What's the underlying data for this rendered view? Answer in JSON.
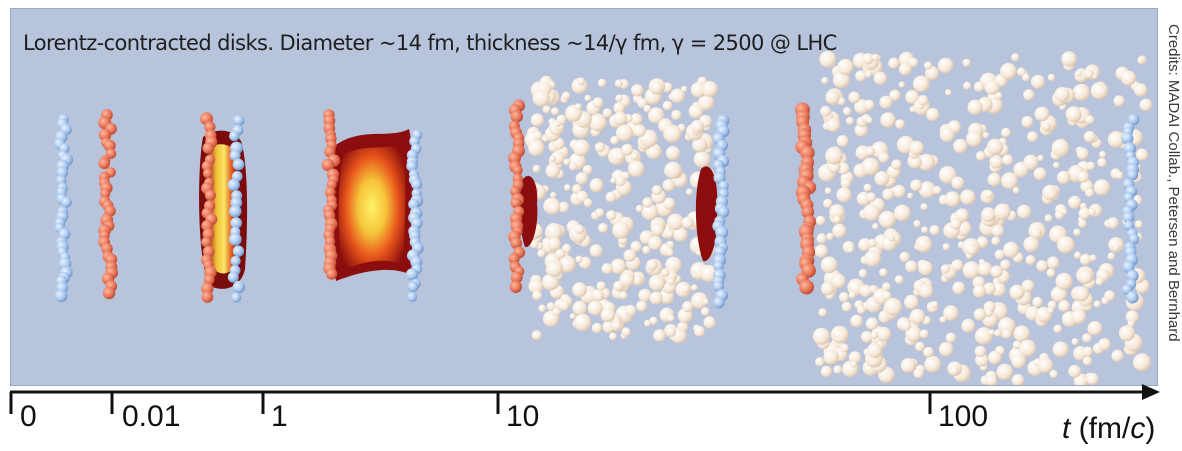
{
  "caption": "Lorentz-contracted disks. Diameter ~14 fm, thickness ~14/γ fm, γ = 2500 @ LHC",
  "credits": "Credits: MADAI Collab., Petersen and Bernhard",
  "axis": {
    "ticks": [
      "0",
      "0.01",
      "1",
      "10",
      "100"
    ],
    "unit_symbol": "t",
    "unit_open": " (fm/",
    "unit_c": "c",
    "unit_close": ")"
  },
  "colors": {
    "background": "#b7c4dc",
    "nucleus_a": "#e8765a",
    "nucleus_b": "#a9c8ee",
    "hadron": "#f6e8d8",
    "plasma_hot": "#f5e23a",
    "plasma_edge": "#8b0d0d"
  },
  "stages": [
    {
      "label": "separate-nuclei"
    },
    {
      "label": "collision"
    },
    {
      "label": "plasma"
    },
    {
      "label": "hadronization"
    },
    {
      "label": "freeze-out"
    }
  ]
}
